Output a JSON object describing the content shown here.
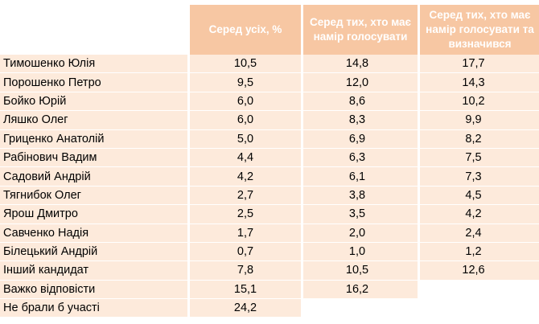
{
  "headers": {
    "col1": "Серед усіх, %",
    "col2": "Серед тих, хто має намір голосувати",
    "col3": "Серед тих, хто має намір голосувати та визначився"
  },
  "rows": [
    {
      "name": "Тимошенко Юлія",
      "all": "10,5",
      "voting": "14,8",
      "decided": "17,7"
    },
    {
      "name": "Порошенко Петро",
      "all": "9,5",
      "voting": "12,0",
      "decided": "14,3"
    },
    {
      "name": "Бойко Юрій",
      "all": "6,0",
      "voting": "8,6",
      "decided": "10,2"
    },
    {
      "name": "Ляшко Олег",
      "all": "6,0",
      "voting": "8,3",
      "decided": "9,9"
    },
    {
      "name": "Гриценко Анатолій",
      "all": "5,0",
      "voting": "6,9",
      "decided": "8,2"
    },
    {
      "name": "Рабінович Вадим",
      "all": "4,4",
      "voting": "6,3",
      "decided": "7,5"
    },
    {
      "name": "Садовий Андрій",
      "all": "4,2",
      "voting": "6,1",
      "decided": "7,3"
    },
    {
      "name": "Тягнибок Олег",
      "all": "2,7",
      "voting": "3,8",
      "decided": "4,5"
    },
    {
      "name": "Ярош Дмитро",
      "all": "2,5",
      "voting": "3,5",
      "decided": "4,2"
    },
    {
      "name": "Савченко Надія",
      "all": "1,7",
      "voting": "2,0",
      "decided": "2,4"
    },
    {
      "name": "Білецький Андрій",
      "all": "0,7",
      "voting": "1,0",
      "decided": "1,2"
    },
    {
      "name": "Інший кандидат",
      "all": "7,8",
      "voting": "10,5",
      "decided": "12,6"
    },
    {
      "name": "Важко відповісти",
      "all": "15,1",
      "voting": "16,2",
      "decided": null
    },
    {
      "name": "Не брали б участі",
      "all": "24,2",
      "voting": null,
      "decided": null
    }
  ]
}
